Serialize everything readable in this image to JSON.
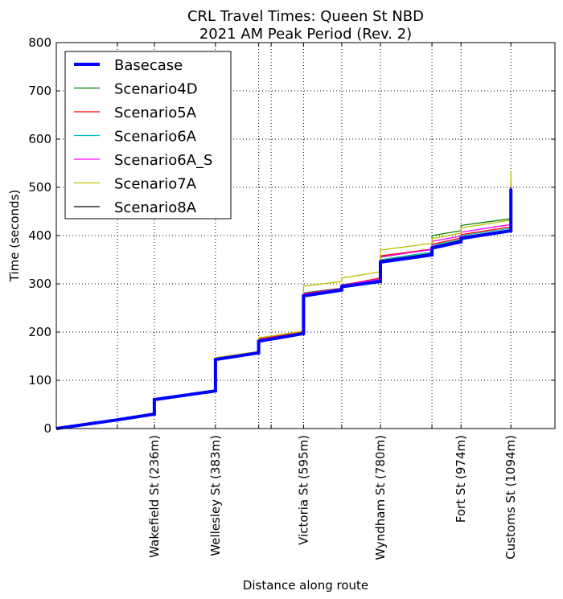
{
  "chart_data": {
    "type": "line",
    "title": "CRL Travel Times: Queen St NBD",
    "subtitle": "2021 AM Peak Period (Rev. 2)",
    "xlabel": "Distance along route",
    "ylabel": "Time (seconds)",
    "xlim": [
      0,
      1200
    ],
    "ylim": [
      0,
      800
    ],
    "yticks": [
      0,
      100,
      200,
      300,
      400,
      500,
      600,
      700,
      800
    ],
    "xticks": [
      {
        "x": 147,
        "label": ""
      },
      {
        "x": 236,
        "label": "Wakefield St (236m)"
      },
      {
        "x": 383,
        "label": "Wellesley St (383m)"
      },
      {
        "x": 487,
        "label": ""
      },
      {
        "x": 517,
        "label": ""
      },
      {
        "x": 595,
        "label": "Victoria St (595m)"
      },
      {
        "x": 687,
        "label": ""
      },
      {
        "x": 780,
        "label": "Wyndham St (780m)"
      },
      {
        "x": 904,
        "label": ""
      },
      {
        "x": 974,
        "label": "Fort St (974m)"
      },
      {
        "x": 1094,
        "label": "Customs St (1094m)"
      }
    ],
    "grid": true,
    "legend_position": "top-left",
    "series": [
      {
        "name": "Basecase",
        "color": "#0000ff",
        "emphasis": "thick",
        "x": [
          0,
          147,
          236,
          236,
          383,
          383,
          487,
          487,
          595,
          595,
          687,
          687,
          780,
          780,
          904,
          904,
          974,
          974,
          1094,
          1094
        ],
        "y": [
          0,
          18,
          30,
          60,
          78,
          143,
          157,
          181,
          197,
          275,
          287,
          294,
          305,
          345,
          360,
          374,
          387,
          394,
          410,
          497
        ]
      },
      {
        "name": "Scenario4D",
        "color": "#008000",
        "x": [
          0,
          147,
          236,
          236,
          383,
          383,
          487,
          487,
          595,
          595,
          687,
          687,
          780,
          780,
          904,
          904,
          974,
          974,
          1094,
          1094
        ],
        "y": [
          0,
          18,
          30,
          61,
          79,
          145,
          158,
          184,
          199,
          281,
          291,
          298,
          310,
          355,
          372,
          400,
          410,
          421,
          435,
          512
        ]
      },
      {
        "name": "Scenario5A",
        "color": "#ff0000",
        "x": [
          0,
          147,
          236,
          236,
          383,
          383,
          487,
          487,
          595,
          595,
          687,
          687,
          780,
          780,
          904,
          904,
          974,
          974,
          1094,
          1094
        ],
        "y": [
          0,
          18,
          30,
          61,
          79,
          146,
          158,
          186,
          200,
          280,
          290,
          297,
          312,
          358,
          372,
          382,
          395,
          402,
          418,
          505
        ]
      },
      {
        "name": "Scenario6A",
        "color": "#00bfbf",
        "x": [
          0,
          147,
          236,
          236,
          383,
          383,
          487,
          487,
          595,
          595,
          687,
          687,
          780,
          780,
          904,
          904,
          974,
          974,
          1094,
          1094
        ],
        "y": [
          0,
          18,
          30,
          60,
          78,
          144,
          157,
          183,
          198,
          278,
          289,
          296,
          308,
          350,
          366,
          380,
          392,
          400,
          415,
          500
        ]
      },
      {
        "name": "Scenario6A_S",
        "color": "#ff00ff",
        "x": [
          0,
          147,
          236,
          236,
          383,
          383,
          487,
          487,
          595,
          595,
          687,
          687,
          780,
          780,
          904,
          904,
          974,
          974,
          1094,
          1094
        ],
        "y": [
          0,
          18,
          30,
          61,
          79,
          145,
          158,
          184,
          199,
          279,
          290,
          297,
          310,
          356,
          371,
          388,
          399,
          407,
          423,
          508
        ]
      },
      {
        "name": "Scenario7A",
        "color": "#bfbf00",
        "x": [
          0,
          147,
          236,
          236,
          383,
          383,
          487,
          487,
          595,
          595,
          687,
          687,
          780,
          780,
          904,
          904,
          974,
          974,
          1094,
          1094
        ],
        "y": [
          0,
          18,
          30,
          61,
          79,
          147,
          160,
          188,
          202,
          295,
          305,
          312,
          325,
          370,
          384,
          394,
          405,
          416,
          432,
          533
        ]
      },
      {
        "name": "Scenario8A",
        "color": "#000000",
        "x": [
          0,
          147,
          236,
          236,
          383,
          383,
          487,
          487,
          595,
          595,
          687,
          687,
          780,
          780,
          904,
          904,
          974,
          974,
          1094,
          1094
        ],
        "y": [
          0,
          18,
          30,
          61,
          79,
          144,
          157,
          182,
          198,
          277,
          288,
          295,
          307,
          348,
          363,
          377,
          390,
          397,
          412,
          500
        ]
      }
    ]
  }
}
